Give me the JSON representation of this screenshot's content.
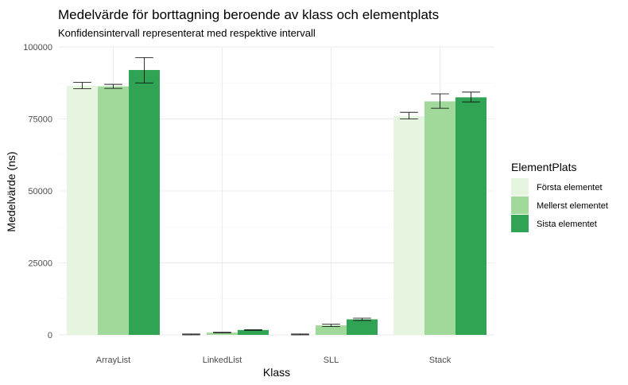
{
  "chart_data": {
    "type": "bar",
    "title": "Medelvärde för borttagning beroende av klass och elementplats",
    "subtitle": "Konfidensintervall representerat med respektive intervall",
    "xlabel": "Klass",
    "ylabel": "Medelvärde (ns)",
    "categories": [
      "ArrayList",
      "LinkedList",
      "SLL",
      "Stack"
    ],
    "ylim": [
      0,
      100000
    ],
    "yticks": [
      0,
      25000,
      50000,
      75000,
      100000
    ],
    "ytick_labels": [
      "0",
      "25000",
      "50000",
      "75000",
      "100000"
    ],
    "grid": true,
    "legend": {
      "title": "ElementPlats",
      "placement": "right"
    },
    "series": [
      {
        "name": "Första elementet",
        "color": "#e5f5e0",
        "values": [
          86500,
          150,
          150,
          76000
        ],
        "ci_low": [
          85500,
          0,
          0,
          75000
        ],
        "ci_high": [
          87700,
          300,
          300,
          77300
        ]
      },
      {
        "name": "Mellerst elementet",
        "color": "#a1d99b",
        "values": [
          86300,
          800,
          3300,
          81100
        ],
        "ci_low": [
          85600,
          700,
          2900,
          78700
        ],
        "ci_high": [
          87000,
          900,
          3700,
          83700
        ]
      },
      {
        "name": "Sista elementet",
        "color": "#31a354",
        "values": [
          92000,
          1700,
          5400,
          82500
        ],
        "ci_low": [
          87500,
          1600,
          5000,
          80900
        ],
        "ci_high": [
          96300,
          1800,
          5800,
          84300
        ]
      }
    ]
  }
}
